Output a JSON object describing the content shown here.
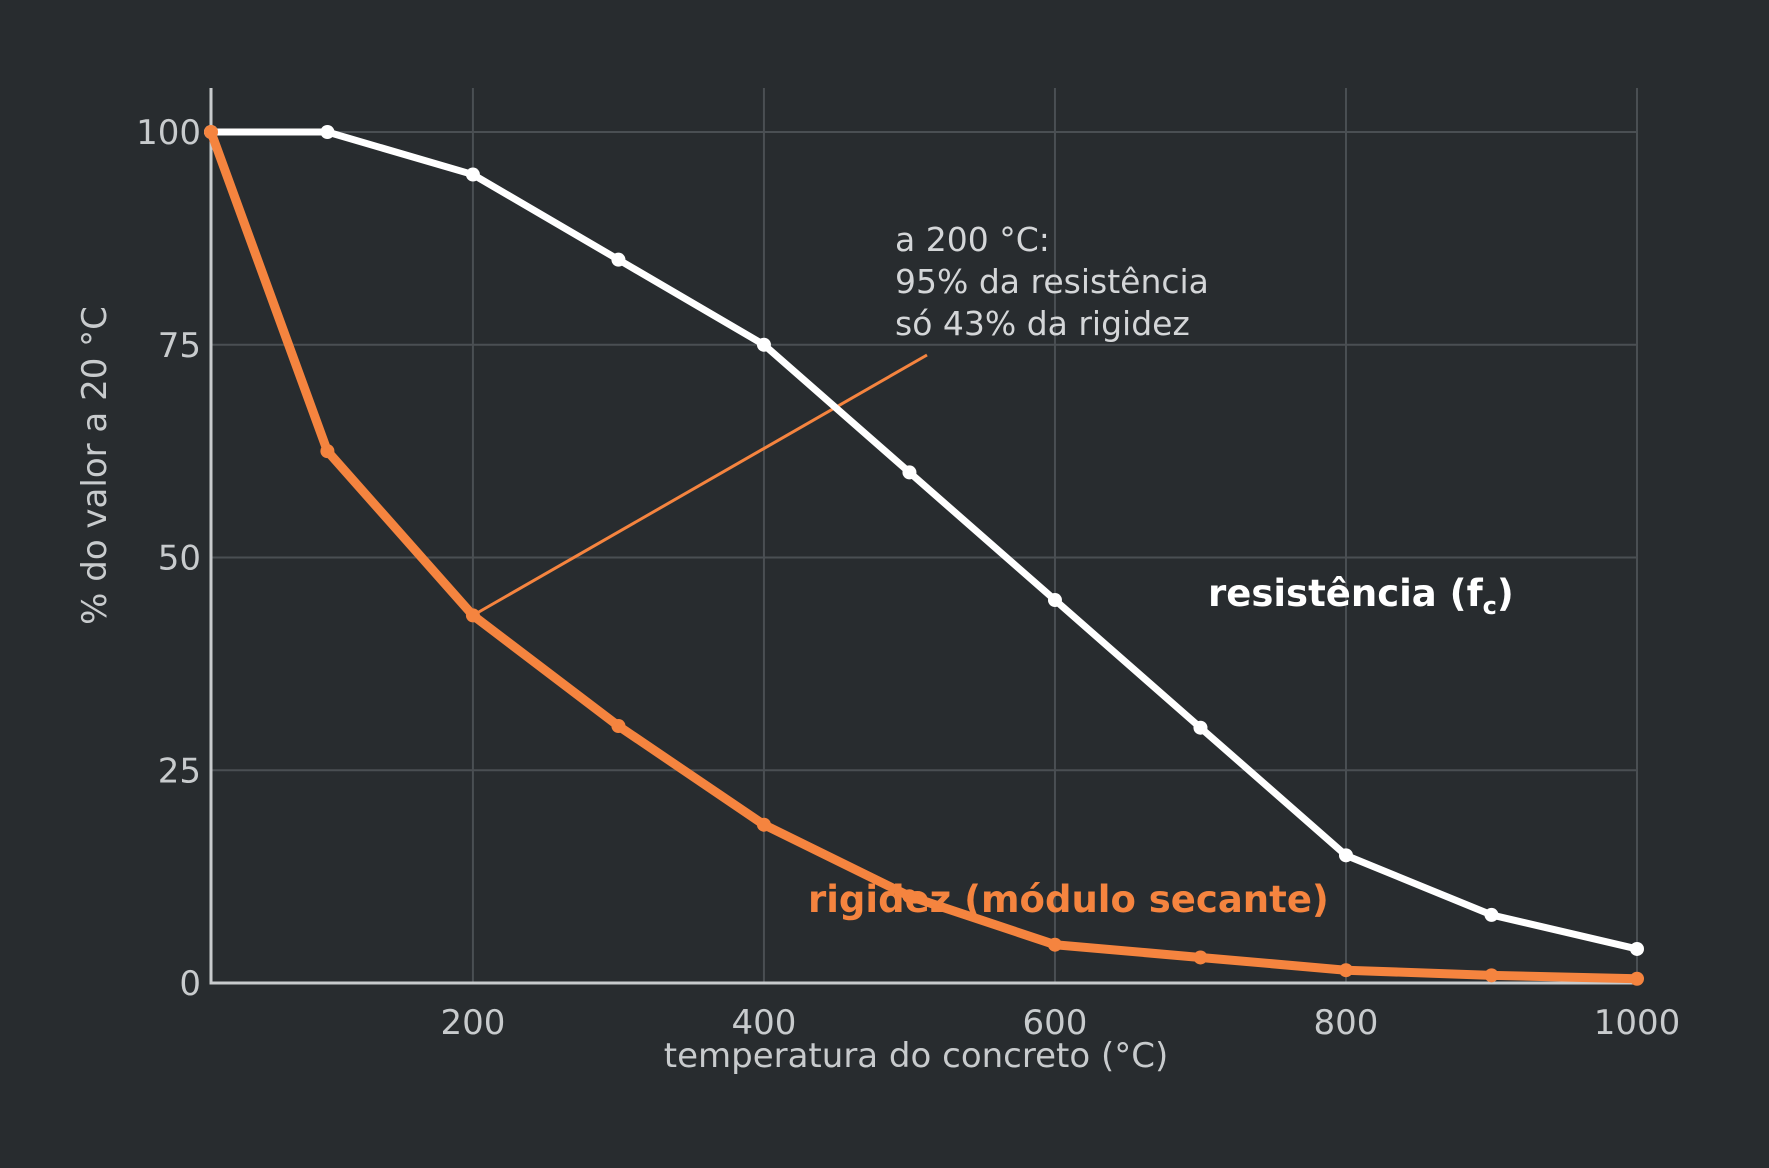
{
  "chart_data": {
    "type": "line",
    "xlabel": "temperatura do concreto (°C)",
    "ylabel": "% do valor a 20 °C",
    "xlim": [
      20,
      1000
    ],
    "ylim": [
      0,
      100
    ],
    "x_ticks": [
      200,
      400,
      600,
      800,
      1000
    ],
    "y_ticks": [
      0,
      25,
      50,
      75,
      100
    ],
    "grid": true,
    "x": [
      20,
      100,
      200,
      300,
      400,
      500,
      600,
      700,
      800,
      900,
      1000
    ],
    "series": [
      {
        "key": "resistencia",
        "label_main": "resistência (f",
        "label_sub": "c",
        "label_end": ")",
        "color": "#ffffff",
        "values": [
          100,
          100,
          95,
          85,
          75,
          60,
          45,
          30,
          15,
          8,
          4
        ]
      },
      {
        "key": "rigidez",
        "label_main": "rigidez (módulo secante)",
        "color": "#f5843f",
        "values": [
          100,
          62.5,
          43.2,
          30.2,
          18.6,
          10.2,
          4.5,
          3.0,
          1.5,
          0.9,
          0.5
        ]
      }
    ],
    "annotation": {
      "lines": [
        "a 200 °C:",
        "95% da resistência",
        "só 43% da rigidez"
      ],
      "target_x": 200,
      "target_y": 43.2,
      "color": "#f5843f"
    }
  }
}
